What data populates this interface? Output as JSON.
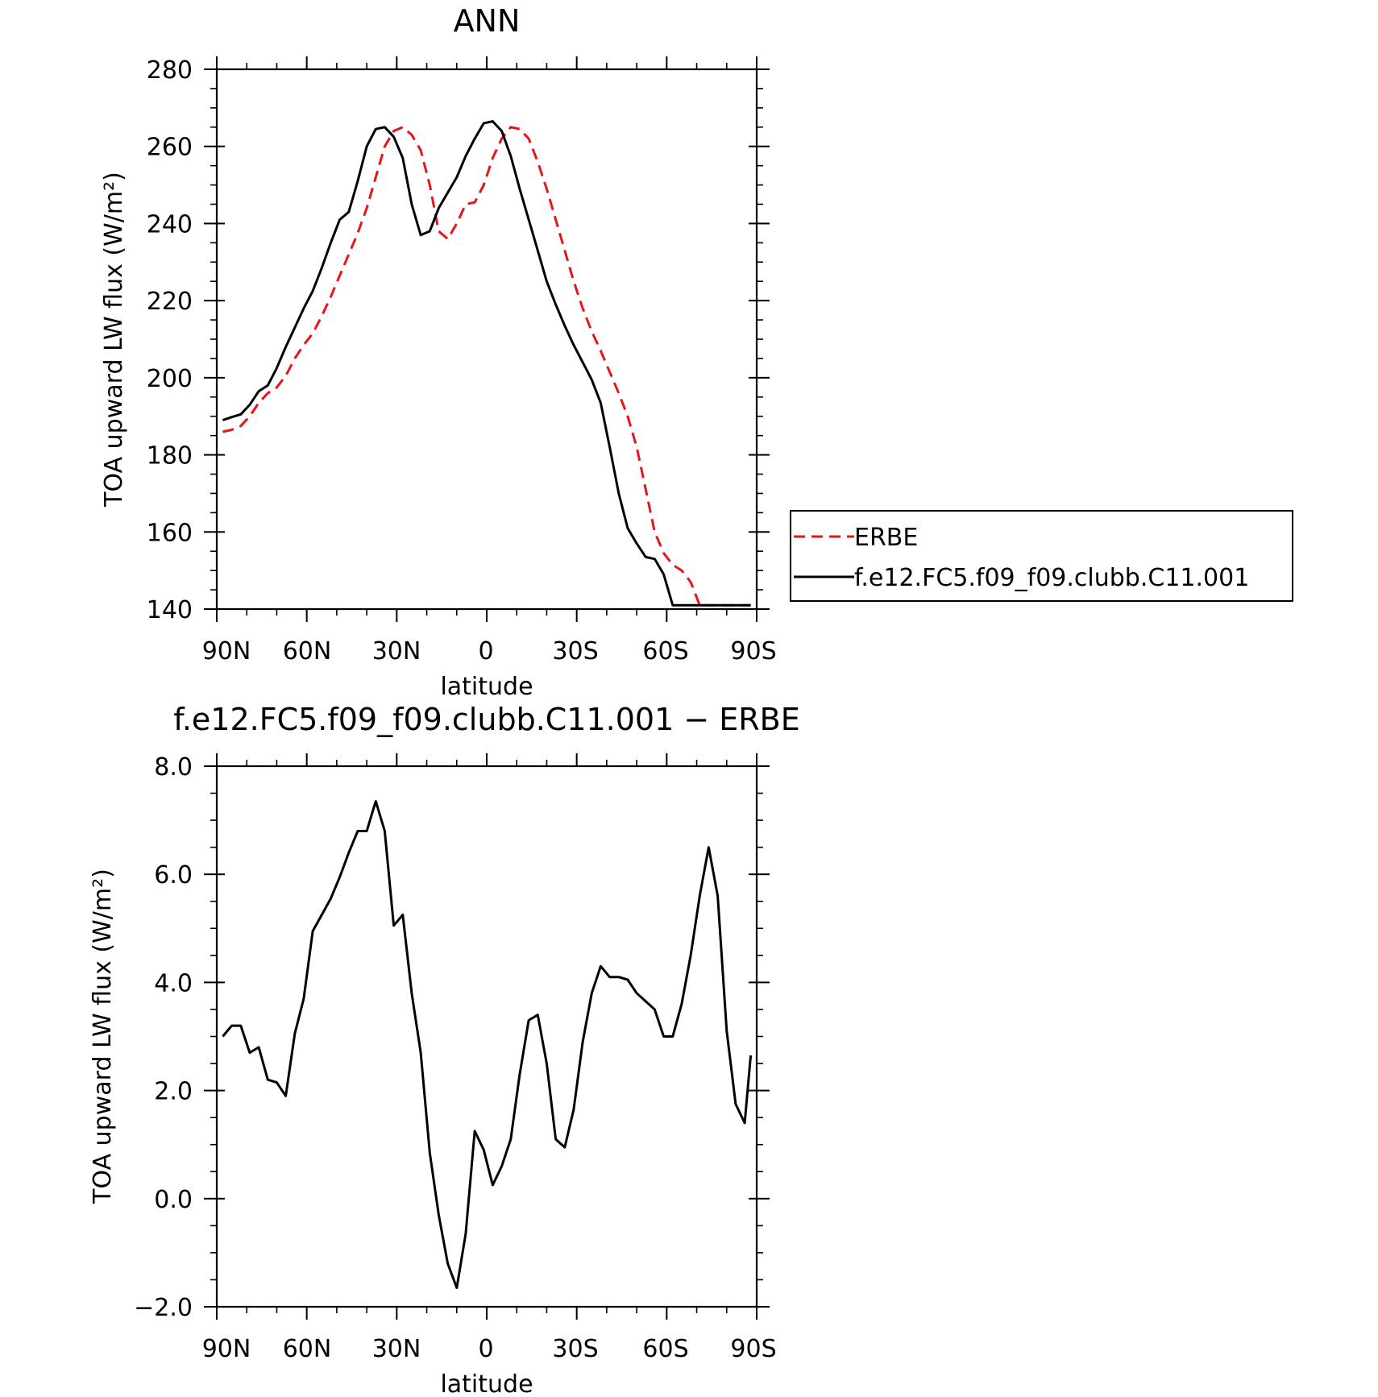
{
  "chart_data": [
    {
      "type": "line",
      "title": "ANN",
      "xlabel": "latitude",
      "ylabel": "TOA upward LW flux (W/m²)",
      "ylim": [
        140,
        280
      ],
      "yticks": [
        "140",
        "160",
        "180",
        "200",
        "220",
        "240",
        "260",
        "280"
      ],
      "xlim": [
        90,
        -90
      ],
      "xticks": [
        "90N",
        "60N",
        "30N",
        "0",
        "30S",
        "60S",
        "90S"
      ],
      "legend_position": "right",
      "series": [
        {
          "name": "ERBE",
          "color": "#e8141b",
          "dash": "dashed",
          "x": [
            88,
            85,
            82,
            79,
            76,
            73,
            70,
            67,
            64,
            61,
            58,
            55,
            52,
            49,
            46,
            43,
            40,
            37,
            34,
            31,
            28,
            25,
            22,
            19,
            16,
            13,
            10,
            7,
            4,
            1,
            -2,
            -5,
            -8,
            -11,
            -14,
            -17,
            -20,
            -23,
            -26,
            -29,
            -32,
            -35,
            -38,
            -41,
            -44,
            -47,
            -50,
            -53,
            -56,
            -59,
            -62,
            -65,
            -68,
            -71,
            -74,
            -77,
            -80,
            -83,
            -86,
            -88
          ],
          "y": [
            186,
            186.5,
            187.5,
            190,
            193.5,
            196,
            197.5,
            200.5,
            205,
            208.5,
            211.5,
            216,
            221,
            226.5,
            232,
            237.5,
            244,
            252,
            260,
            264,
            265,
            263,
            259,
            250,
            238,
            236,
            240,
            245,
            245.5,
            250,
            257,
            262,
            265,
            264.5,
            262,
            256,
            249,
            241,
            233,
            225,
            218,
            212,
            207,
            201.5,
            196,
            190,
            182,
            171,
            160,
            154.5,
            151.5,
            150,
            147,
            141,
            141,
            141,
            141,
            141,
            141,
            141
          ]
        },
        {
          "name": "f.e12.FC5.f09_f09.clubb.C11.001",
          "color": "#000000",
          "dash": "solid",
          "x": [
            88,
            85,
            82,
            79,
            76,
            73,
            70,
            67,
            64,
            61,
            58,
            55,
            52,
            49,
            46,
            43,
            40,
            37,
            34,
            31,
            28,
            25,
            22,
            19,
            16,
            13,
            10,
            7,
            4,
            1,
            -2,
            -5,
            -8,
            -11,
            -14,
            -17,
            -20,
            -23,
            -26,
            -29,
            -32,
            -35,
            -38,
            -41,
            -44,
            -47,
            -50,
            -53,
            -56,
            -59,
            -62,
            -65,
            -68,
            -71,
            -74,
            -77,
            -80,
            -83,
            -86,
            -88
          ],
          "y": [
            189,
            189.8,
            190.5,
            193,
            196.5,
            198,
            202.5,
            208,
            213,
            218,
            222.5,
            228.5,
            235,
            241,
            243,
            251,
            260,
            264.5,
            265,
            262.5,
            257,
            245,
            237,
            238,
            244,
            248,
            252,
            257.5,
            262,
            266,
            266.5,
            264,
            257.5,
            249,
            241,
            233,
            225,
            219,
            213.5,
            208.5,
            204,
            199.5,
            193.5,
            182,
            170,
            161,
            157,
            153.5,
            153,
            149,
            141,
            141,
            141,
            141,
            141,
            141,
            141,
            141,
            141,
            141
          ]
        }
      ]
    },
    {
      "type": "line",
      "title": "f.e12.FC5.f09_f09.clubb.C11.001 − ERBE",
      "xlabel": "latitude",
      "ylabel": "TOA upward LW flux (W/m²)",
      "ylim": [
        -2.0,
        8.0
      ],
      "yticks": [
        "−2.0",
        "0.0",
        "2.0",
        "4.0",
        "6.0",
        "8.0"
      ],
      "xlim": [
        90,
        -90
      ],
      "xticks": [
        "90N",
        "60N",
        "30N",
        "0",
        "30S",
        "60S",
        "90S"
      ],
      "series": [
        {
          "color": "#000000",
          "dash": "solid",
          "x": [
            88,
            85,
            82,
            79,
            76,
            73,
            70,
            67,
            64,
            61,
            58,
            55,
            52,
            49,
            46,
            43,
            40,
            37,
            34,
            31,
            28,
            25,
            22,
            19,
            16,
            13,
            10,
            7,
            4,
            1,
            -2,
            -5,
            -8,
            -11,
            -14,
            -17,
            -20,
            -23,
            -26,
            -29,
            -32,
            -35,
            -38,
            -41,
            -44,
            -47,
            -50,
            -53,
            -56,
            -59,
            -62,
            -65,
            -68,
            -71,
            -74,
            -77,
            -80,
            -83,
            -86,
            -88
          ],
          "y": [
            3.0,
            3.2,
            3.2,
            2.7,
            2.8,
            2.2,
            2.15,
            1.9,
            3.05,
            3.7,
            4.95,
            5.25,
            5.55,
            5.95,
            6.4,
            6.8,
            6.8,
            7.35,
            6.8,
            5.05,
            5.25,
            3.8,
            2.7,
            0.85,
            -0.3,
            -1.2,
            -1.65,
            -0.65,
            1.25,
            0.9,
            0.25,
            0.6,
            1.1,
            2.3,
            3.3,
            3.4,
            2.5,
            1.1,
            0.95,
            1.65,
            2.9,
            3.8,
            4.3,
            4.1,
            4.1,
            4.05,
            3.8,
            3.65,
            3.5,
            3.0,
            3.0,
            3.6,
            4.5,
            5.6,
            6.5,
            5.6,
            3.1,
            1.75,
            1.4,
            2.65
          ]
        }
      ]
    }
  ]
}
